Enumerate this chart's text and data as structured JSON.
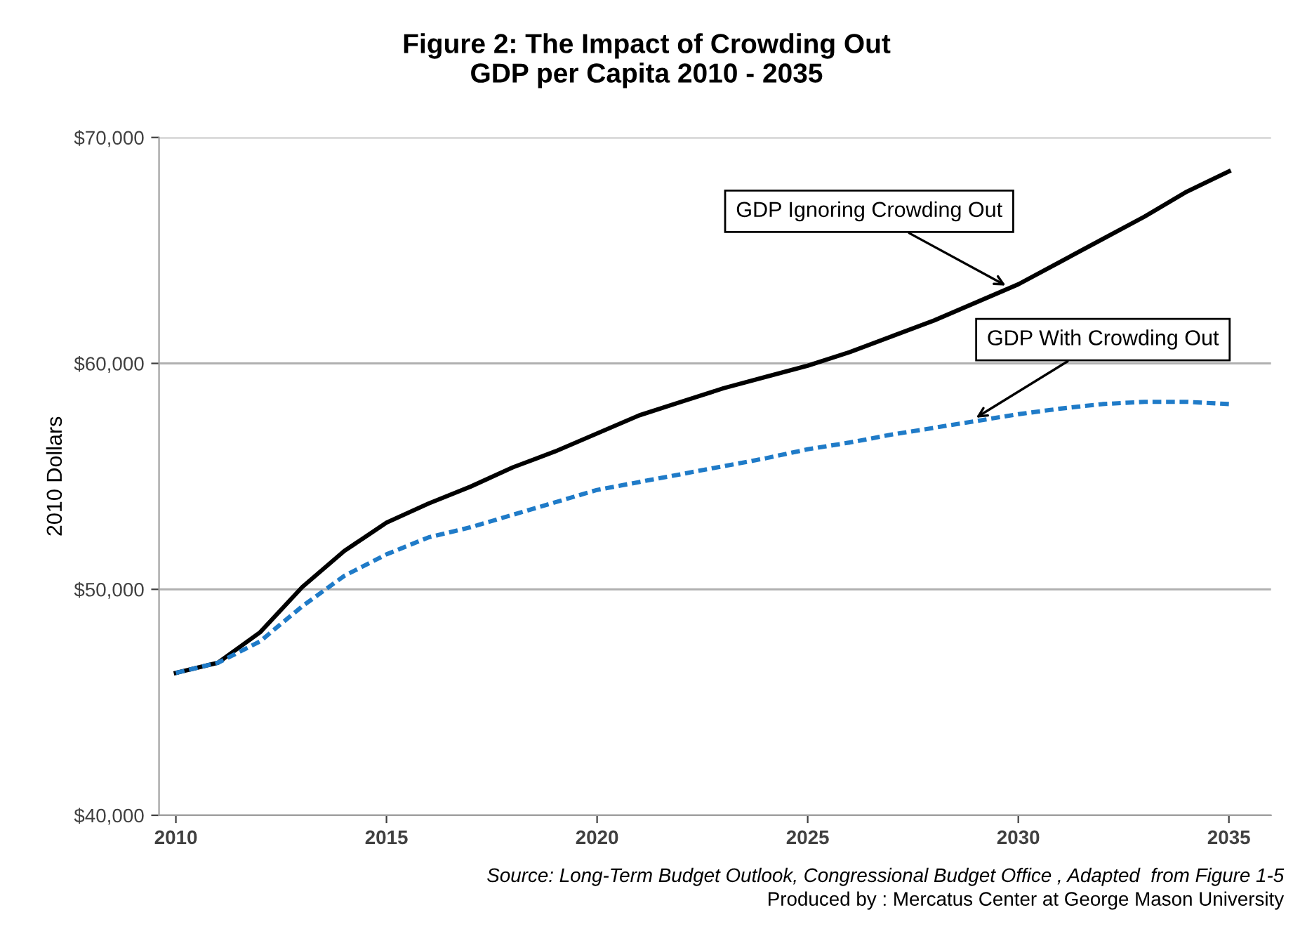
{
  "chart_data": {
    "type": "line",
    "title": "Figure 2: The Impact of Crowding Out\nGDP per Capita 2010 - 2035",
    "ylabel": "2010 Dollars",
    "x": [
      2010,
      2011,
      2012,
      2013,
      2014,
      2015,
      2016,
      2017,
      2018,
      2019,
      2020,
      2021,
      2022,
      2023,
      2024,
      2025,
      2026,
      2027,
      2028,
      2029,
      2030,
      2031,
      2032,
      2033,
      2034,
      2035
    ],
    "series": [
      {
        "color": "#000000",
        "line_style": "solid",
        "values": [
          46300,
          46750,
          48100,
          50100,
          51700,
          52950,
          53800,
          54550,
          55400,
          56100,
          56900,
          57700,
          58300,
          58900,
          59400,
          59900,
          60500,
          61200,
          61900,
          62700,
          63500,
          64500,
          65500,
          66500,
          67600,
          68500
        ]
      },
      {
        "color": "#1f7bc8",
        "line_style": "dashed",
        "values": [
          46300,
          46750,
          47700,
          49250,
          50600,
          51550,
          52300,
          52750,
          53300,
          53850,
          54400,
          54750,
          55100,
          55450,
          55800,
          56200,
          56500,
          56850,
          57150,
          57450,
          57750,
          58000,
          58200,
          58300,
          58300,
          58200
        ]
      }
    ],
    "xlim": [
      2009.6,
      2036
    ],
    "xticks": [
      2010,
      2015,
      2020,
      2025,
      2030,
      2035
    ],
    "ylim": [
      40000,
      70000
    ],
    "yticks": [
      {
        "value": 40000,
        "label": "$40,000"
      },
      {
        "value": 50000,
        "label": "$50,000"
      },
      {
        "value": 60000,
        "label": "$60,000"
      },
      {
        "value": 70000,
        "label": "$70,000"
      }
    ],
    "grid": "y",
    "legend": false,
    "annotations": [
      {
        "text": "GDP Ignoring Crowding Out",
        "x": 2029.7,
        "y": 63450
      },
      {
        "text": "GDP With Crowding Out",
        "x": 2029,
        "y": 57600
      },
      "Source: Long-Term Budget Outlook, Congressional Budget Office , Adapted  from Figure 1-5",
      "Produced by : Mercatus Center at George Mason University"
    ]
  }
}
